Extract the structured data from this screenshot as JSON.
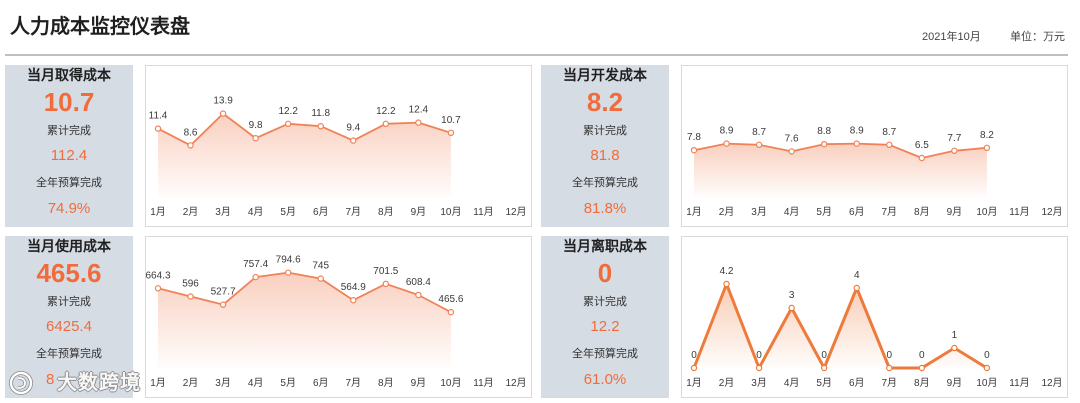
{
  "header": {
    "title": "人力成本监控仪表盘",
    "period": "2021年10月",
    "unit": "单位：万元"
  },
  "colors": {
    "accent": "#F26B3A",
    "card_bg": "#D6DCE4",
    "rule": "#BFBFBF"
  },
  "panels": [
    {
      "title": "当月取得成本",
      "value": "10.7",
      "cum_label": "累计完成",
      "cum_value": "112.4",
      "budget_label": "全年预算完成",
      "budget_value": "74.9%"
    },
    {
      "title": "当月开发成本",
      "value": "8.2",
      "cum_label": "累计完成",
      "cum_value": "81.8",
      "budget_label": "全年预算完成",
      "budget_value": "81.8%"
    },
    {
      "title": "当月使用成本",
      "value": "465.6",
      "cum_label": "累计完成",
      "cum_value": "6425.4",
      "budget_label": "全年预算完成",
      "budget_value": "8"
    },
    {
      "title": "当月离职成本",
      "value": "0",
      "cum_label": "累计完成",
      "cum_value": "12.2",
      "budget_label": "全年预算完成",
      "budget_value": "61.0%"
    }
  ],
  "watermark": {
    "text": "大数跨境"
  },
  "chart_data": [
    {
      "type": "area",
      "categories": [
        "1月",
        "2月",
        "3月",
        "4月",
        "5月",
        "6月",
        "7月",
        "8月",
        "9月",
        "10月",
        "11月",
        "12月"
      ],
      "values": [
        11.4,
        8.6,
        13.9,
        9.8,
        12.2,
        11.8,
        9.4,
        12.2,
        12.4,
        10.7,
        null,
        null
      ],
      "ylim": [
        0,
        20
      ],
      "grid": false,
      "legend": "none",
      "color": "#F08257"
    },
    {
      "type": "area",
      "categories": [
        "1月",
        "2月",
        "3月",
        "4月",
        "5月",
        "6月",
        "7月",
        "8月",
        "9月",
        "10月",
        "11月",
        "12月"
      ],
      "values": [
        7.8,
        8.9,
        8.7,
        7.6,
        8.8,
        8.9,
        8.7,
        6.5,
        7.7,
        8.2,
        null,
        null
      ],
      "ylim": [
        0,
        20
      ],
      "grid": false,
      "legend": "none",
      "color": "#F08257"
    },
    {
      "type": "area",
      "categories": [
        "1月",
        "2月",
        "3月",
        "4月",
        "5月",
        "6月",
        "7月",
        "8月",
        "9月",
        "10月",
        "11月",
        "12月"
      ],
      "values": [
        664.3,
        596,
        527.7,
        757.4,
        794.6,
        745,
        564.9,
        701.5,
        608.4,
        465.6,
        null,
        null
      ],
      "ylim": [
        0,
        1000
      ],
      "grid": false,
      "legend": "none",
      "color": "#F08257"
    },
    {
      "type": "area",
      "categories": [
        "1月",
        "2月",
        "3月",
        "4月",
        "5月",
        "6月",
        "7月",
        "8月",
        "9月",
        "10月",
        "11月",
        "12月"
      ],
      "values": [
        0,
        4.2,
        0,
        3,
        0,
        4,
        0,
        0,
        1,
        0,
        null,
        null
      ],
      "ylim": [
        0,
        6
      ],
      "grid": false,
      "legend": "none",
      "color": "#EE7A3C"
    }
  ]
}
